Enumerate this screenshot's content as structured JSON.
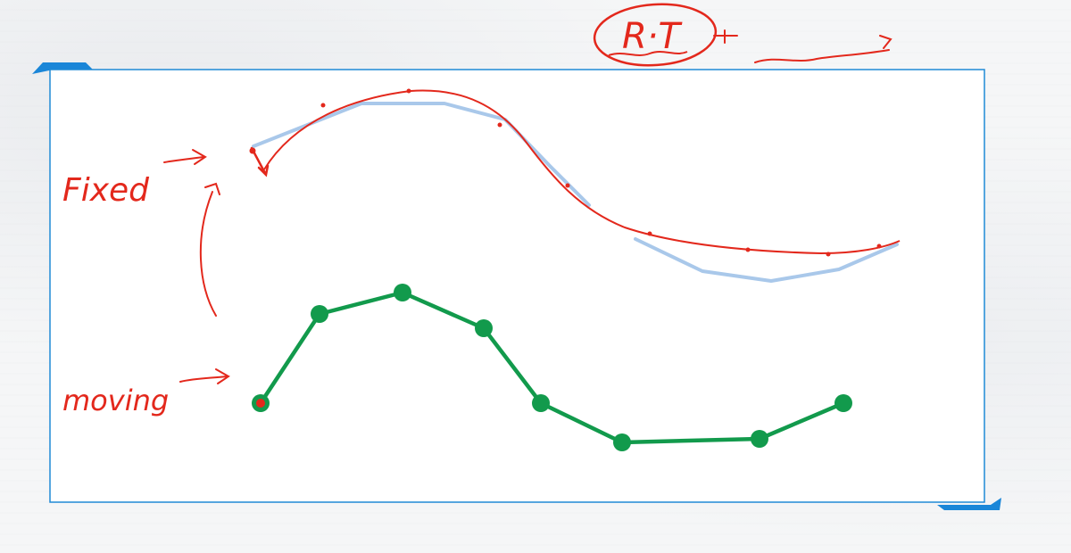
{
  "annotations": {
    "fixed_label": "Fixed",
    "moving_label": "moving",
    "rt_label": "R·T"
  },
  "colors": {
    "frame": "#1f8ad6",
    "frame_tab": "#1a86d8",
    "ink_red": "#e3281c",
    "fixed_curve": "#a9c8ea",
    "moving_curve": "#129a4c",
    "moving_point": "#129a4c"
  }
}
